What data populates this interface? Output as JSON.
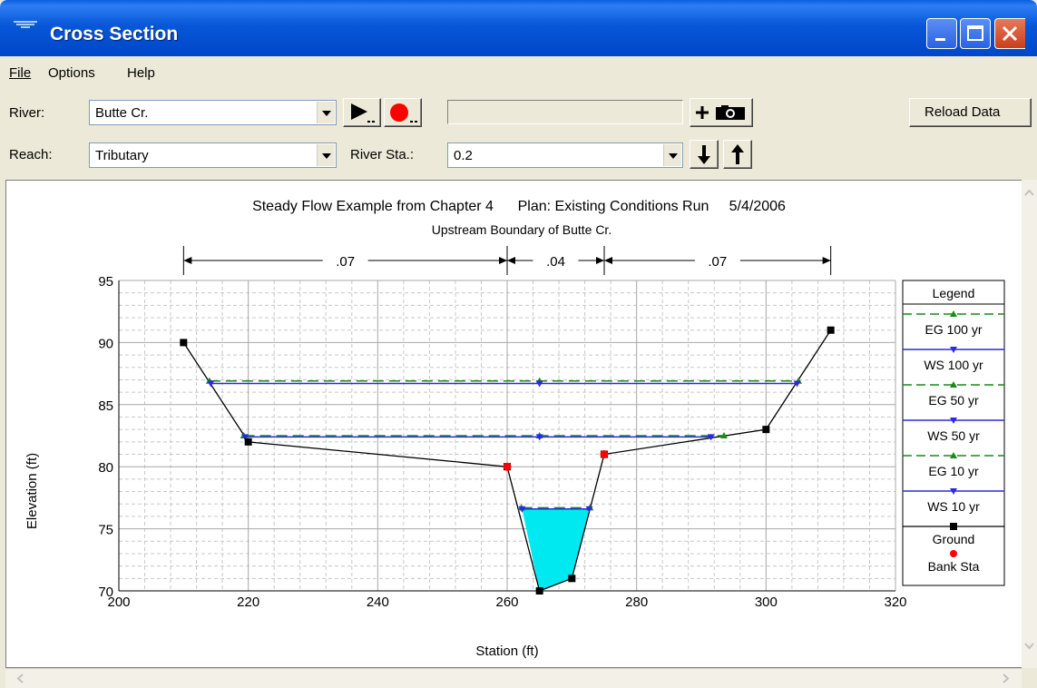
{
  "window": {
    "title": "Cross Section"
  },
  "menu": {
    "file": "File",
    "options": "Options",
    "help": "Help"
  },
  "toolbar": {
    "river_label": "River:",
    "river_value": "Butte Cr.",
    "reach_label": "Reach:",
    "reach_value": "Tributary",
    "river_sta_label": "River Sta.:",
    "river_sta_value": "0.2",
    "reload_label": "Reload Data"
  },
  "colors": {
    "eg": "#1a8a1a",
    "ws": "#2a2ae0",
    "water": "#00e8f0",
    "ground": "#000000",
    "bank": "#ff0000"
  },
  "chart_data": {
    "type": "line",
    "title": "Steady Flow Example from Chapter 4      Plan: Existing Conditions Run     5/4/2006",
    "subtitle": "Upstream Boundary of Butte Cr.",
    "xlabel": "Station (ft)",
    "ylabel": "Elevation (ft)",
    "xlim": [
      200,
      320
    ],
    "ylim": [
      70,
      95
    ],
    "x_ticks": [
      200,
      220,
      240,
      260,
      280,
      300,
      320
    ],
    "y_ticks": [
      70,
      75,
      80,
      85,
      90,
      95
    ],
    "grid": true,
    "legend_title": "Legend",
    "legend_placement": "right",
    "mannings": [
      {
        "label": ".07",
        "from": 210,
        "to": 260
      },
      {
        "label": ".04",
        "from": 260,
        "to": 275
      },
      {
        "label": ".07",
        "from": 275,
        "to": 310
      }
    ],
    "ground": {
      "name": "Ground",
      "x": [
        210,
        220,
        260,
        265,
        270,
        275,
        300,
        310
      ],
      "y": [
        90,
        82,
        80,
        70,
        71,
        81,
        83,
        91
      ]
    },
    "bank_stations": {
      "name": "Bank Sta",
      "x": [
        260,
        275
      ],
      "y": [
        80,
        81
      ]
    },
    "series": [
      {
        "name": "EG 100 yr",
        "kind": "eg",
        "y": 86.9,
        "x": [
          214,
          305
        ]
      },
      {
        "name": "WS 100 yr",
        "kind": "ws",
        "y": 86.7,
        "x": [
          214.2,
          304.8
        ]
      },
      {
        "name": "EG 50 yr",
        "kind": "eg",
        "y": 82.5,
        "x": [
          219.3,
          293.5
        ]
      },
      {
        "name": "WS 50 yr",
        "kind": "ws",
        "y": 82.4,
        "x": [
          219.5,
          291.5
        ]
      },
      {
        "name": "EG 10 yr",
        "kind": "eg",
        "y": 76.7,
        "x": [
          262.2,
          272.8
        ]
      },
      {
        "name": "WS 10 yr",
        "kind": "ws",
        "y": 76.6,
        "x": [
          262.3,
          272.7
        ]
      }
    ]
  }
}
